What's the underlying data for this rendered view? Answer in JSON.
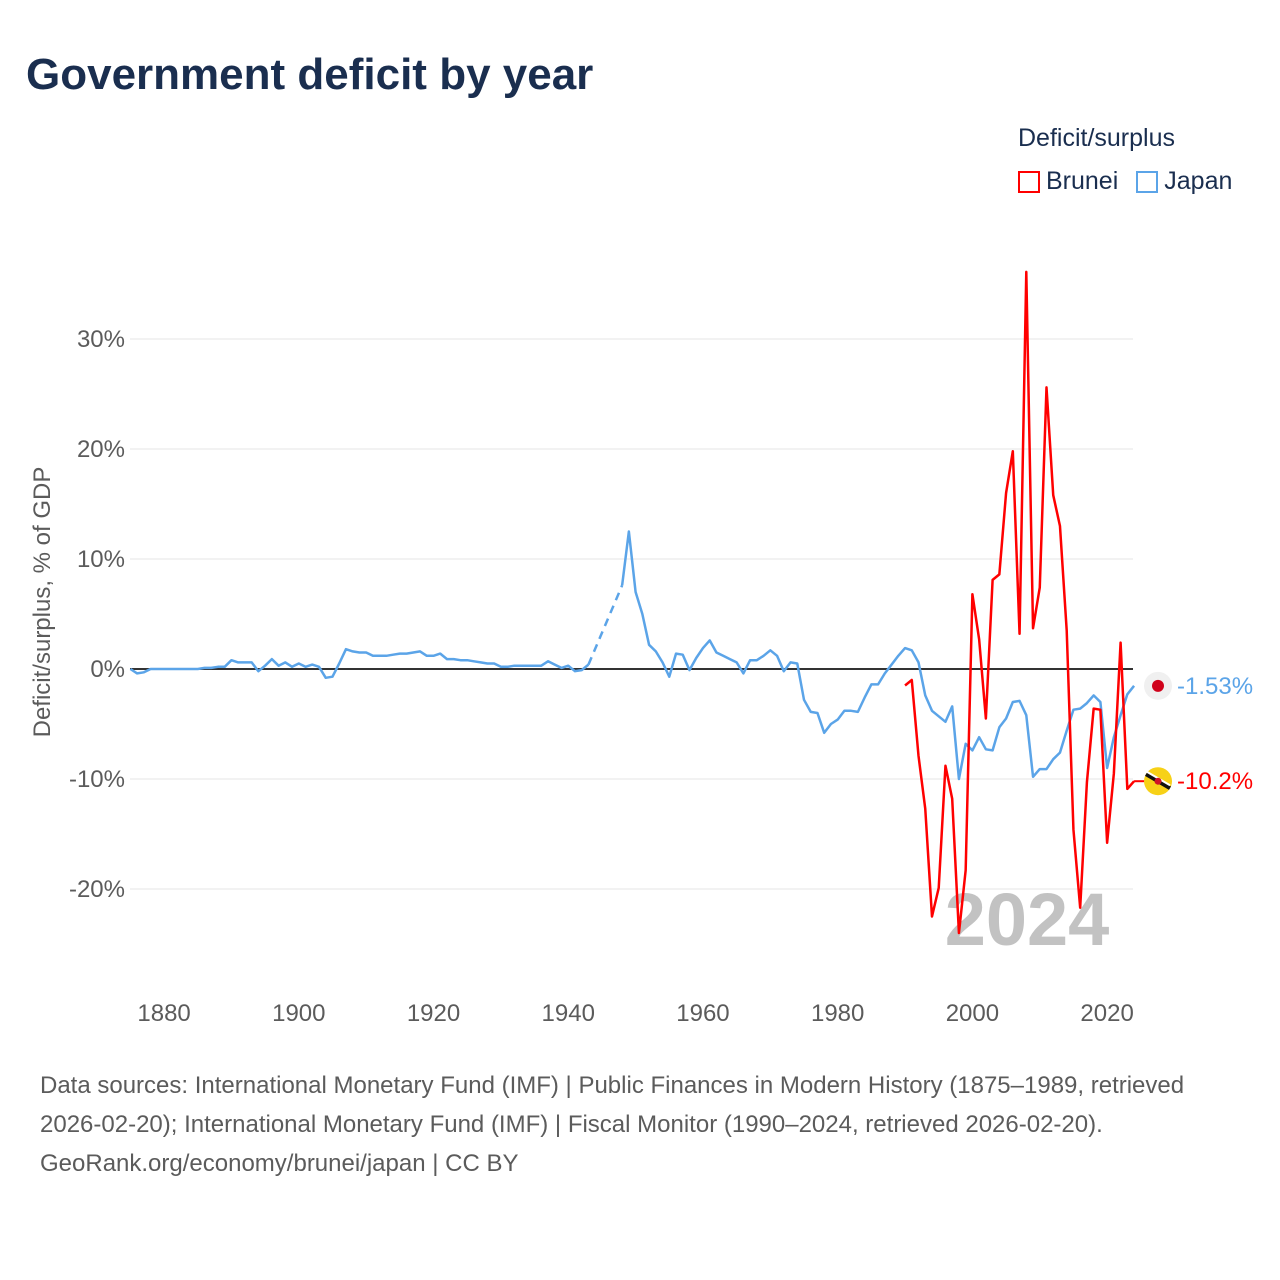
{
  "title": "Government deficit by year",
  "legend": {
    "title": "Deficit/surplus",
    "items": [
      {
        "name": "Brunei",
        "color": "#ff0000"
      },
      {
        "name": "Japan",
        "color": "#5ba4e8"
      }
    ]
  },
  "chart_data": {
    "type": "line",
    "title": "Government deficit by year",
    "ylabel": "Deficit/surplus, % of GDP",
    "xlabel": "",
    "xlim": [
      1875,
      2024
    ],
    "ylim": [
      -27,
      38
    ],
    "yticks": [
      -20,
      -10,
      0,
      10,
      20,
      30
    ],
    "ytick_labels": [
      "-20%",
      "-10%",
      "0%",
      "10%",
      "20%",
      "30%"
    ],
    "xticks": [
      1880,
      1900,
      1920,
      1940,
      1960,
      1980,
      2000,
      2020
    ],
    "xtick_labels": [
      "1880",
      "1900",
      "1920",
      "1940",
      "1960",
      "1980",
      "2000",
      "2020"
    ],
    "year_watermark": "2024",
    "series": [
      {
        "name": "Japan",
        "color": "#5ba4e8",
        "start_year": 1875,
        "dashed_gap": [
          1943,
          1948
        ],
        "end_label": "-1.53%",
        "values": [
          0,
          -0.4,
          -0.3,
          0,
          0,
          0,
          0,
          0,
          0,
          0,
          0,
          0.1,
          0.1,
          0.2,
          0.2,
          0.8,
          0.6,
          0.6,
          0.6,
          -0.2,
          0.3,
          0.9,
          0.3,
          0.6,
          0.2,
          0.5,
          0.2,
          0.4,
          0.2,
          -0.8,
          -0.7,
          0.5,
          1.8,
          1.6,
          1.5,
          1.5,
          1.2,
          1.2,
          1.2,
          1.3,
          1.4,
          1.4,
          1.5,
          1.6,
          1.2,
          1.2,
          1.4,
          0.9,
          0.9,
          0.8,
          0.8,
          0.7,
          0.6,
          0.5,
          0.5,
          0.2,
          0.2,
          0.3,
          0.3,
          0.3,
          0.3,
          0.3,
          0.7,
          0.4,
          0.1,
          0.3,
          -0.2,
          -0.1,
          0.4,
          null,
          null,
          null,
          null,
          7.6,
          12.5,
          7.0,
          5.0,
          2.2,
          1.6,
          0.6,
          -0.7,
          1.4,
          1.3,
          -0.1,
          1.0,
          1.9,
          2.6,
          1.5,
          1.2,
          0.9,
          0.6,
          -0.4,
          0.8,
          0.8,
          1.2,
          1.7,
          1.2,
          -0.2,
          0.6,
          0.5,
          -2.8,
          -3.9,
          -4.0,
          -5.8,
          -5.0,
          -4.6,
          -3.8,
          -3.8,
          -3.9,
          -2.6,
          -1.4,
          -1.4,
          -0.4,
          0.4,
          1.2,
          1.9,
          1.7,
          0.6,
          -2.4,
          -3.8,
          -4.3,
          -4.8,
          -3.4,
          -10.0,
          -6.8,
          -7.4,
          -6.2,
          -7.3,
          -7.4,
          -5.3,
          -4.5,
          -3.0,
          -2.9,
          -4.2,
          -9.8,
          -9.1,
          -9.1,
          -8.2,
          -7.6,
          -5.6,
          -3.7,
          -3.6,
          -3.1,
          -2.4,
          -3.0,
          -9.0,
          -6.2,
          -4.2,
          -2.3,
          -1.53
        ]
      },
      {
        "name": "Brunei",
        "color": "#ff0000",
        "start_year": 1990,
        "end_label": "-10.2%",
        "values": [
          -1.5,
          -1.0,
          -7.9,
          -12.7,
          -22.5,
          -19.9,
          -8.8,
          -11.8,
          -24.0,
          -18.3,
          6.8,
          2.7,
          -4.5,
          8.1,
          8.6,
          16.0,
          19.8,
          3.2,
          36.1,
          3.7,
          7.4,
          25.6,
          15.8,
          13.0,
          3.5,
          -14.6,
          -21.7,
          -10.3,
          -3.6,
          -3.7,
          -15.8,
          -9.5,
          2.4,
          -10.9,
          -10.2
        ]
      }
    ]
  },
  "footer": {
    "sources": "Data sources: International Monetary Fund (IMF) | Public Finances in Modern History (1875–1989, retrieved 2026-02-20); International Monetary Fund (IMF) | Fiscal Monitor (1990–2024, retrieved 2026-02-20).",
    "attribution": "GeoRank.org/economy/brunei/japan | CC BY"
  }
}
